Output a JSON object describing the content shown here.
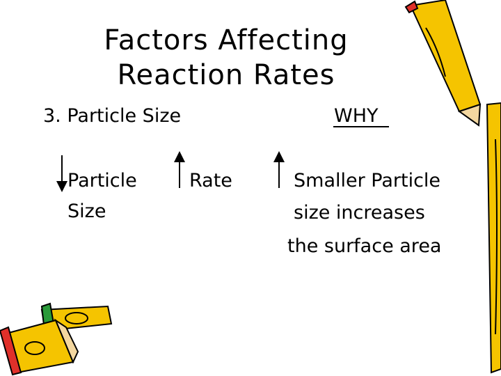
{
  "title": {
    "lines": [
      "Factors Affecting",
      "Reaction Rates"
    ]
  },
  "heading": {
    "left": "3. Particle Size",
    "right": "WHY"
  },
  "items": [
    {
      "lines": [
        "Particle",
        "Size"
      ]
    },
    {
      "lines": [
        "Rate"
      ]
    },
    {
      "lines": [
        "Smaller Particle",
        "size increases",
        "the surface area"
      ]
    }
  ]
}
